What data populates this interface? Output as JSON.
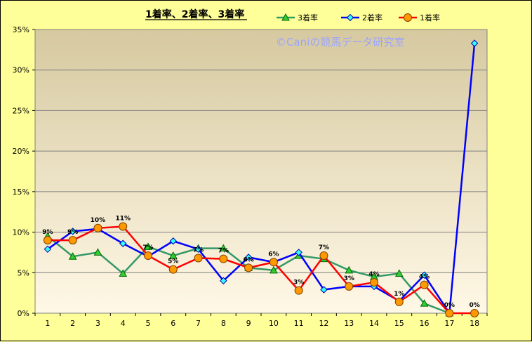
{
  "chart_data": {
    "type": "line",
    "title": "1着率、2着率、3着率",
    "watermark": "©Caniの競馬データ研究室",
    "categories": [
      "1",
      "2",
      "3",
      "4",
      "5",
      "6",
      "7",
      "8",
      "9",
      "10",
      "11",
      "12",
      "13",
      "14",
      "15",
      "16",
      "17",
      "18"
    ],
    "ylim": [
      0,
      35
    ],
    "yticks": [
      "0%",
      "5%",
      "10%",
      "15%",
      "20%",
      "25%",
      "30%",
      "35%"
    ],
    "grid": true,
    "legend_position": "top-right",
    "series": [
      {
        "name": "3着率",
        "color": "#339966",
        "marker": "triangle",
        "values": [
          9.5,
          7.0,
          7.5,
          4.9,
          8.2,
          7.1,
          8.0,
          8.0,
          5.6,
          5.3,
          7.1,
          6.7,
          5.3,
          4.5,
          4.9,
          1.2,
          0.0,
          null
        ]
      },
      {
        "name": "2着率",
        "color": "#0000ff",
        "marker": "diamond",
        "values": [
          7.9,
          10.1,
          10.4,
          8.6,
          7.0,
          8.9,
          7.9,
          4.0,
          6.9,
          6.3,
          7.5,
          2.9,
          3.3,
          3.3,
          1.5,
          4.7,
          0.0,
          33.3
        ]
      },
      {
        "name": "1着率",
        "color": "#ff0000",
        "marker": "circle",
        "values": [
          9.0,
          9.0,
          10.5,
          10.7,
          7.1,
          5.4,
          6.8,
          6.7,
          5.6,
          6.3,
          2.8,
          7.1,
          3.3,
          3.8,
          1.4,
          3.5,
          0.0,
          0.0
        ],
        "data_labels": [
          "9%",
          "9%",
          "10%",
          "11%",
          "7%",
          "5%",
          "7%",
          "7%",
          "6%",
          "6%",
          "3%",
          "7%",
          "3%",
          "4%",
          "1%",
          "4%",
          "0%",
          "0%"
        ]
      }
    ]
  }
}
